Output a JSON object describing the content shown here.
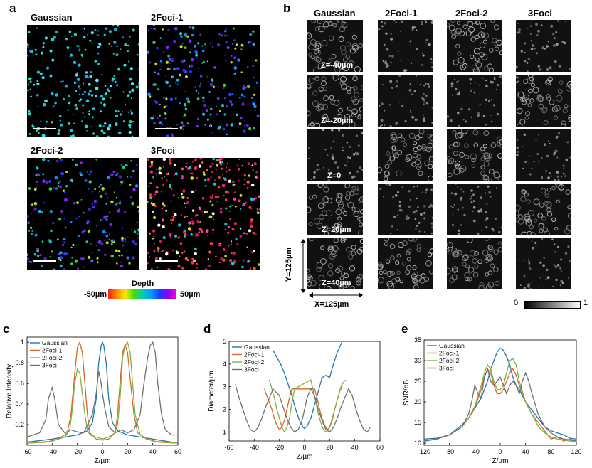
{
  "panel_a": {
    "label": "a",
    "titles": [
      "Gaussian",
      "2Foci-1",
      "2Foci-2",
      "3Foci"
    ],
    "depth": {
      "title": "Depth",
      "min": "-50µm",
      "max": "50µm"
    }
  },
  "panel_b": {
    "label": "b",
    "columns": [
      "Gaussian",
      "2Foci-1",
      "2Foci-2",
      "3Foci"
    ],
    "z_labels": [
      "Z=-40µm",
      "Z=-20µm",
      "Z=0",
      "Z=20µm",
      "Z=40µm"
    ],
    "y_size": "Y=125µm",
    "x_size": "X=125µm",
    "scale_min": "0",
    "scale_max": "1"
  },
  "colors": {
    "Gaussian": "#1f77b4",
    "2Foci-1": "#e0622a",
    "2Foci-2": "#7bb33e",
    "3Foci": "#707070"
  },
  "chart_data": [
    {
      "id": "c",
      "label": "c",
      "type": "line",
      "xlabel": "Z/µm",
      "ylabel": "Relative Intensity",
      "xlim": [
        -60,
        60
      ],
      "ylim": [
        0,
        1.05
      ],
      "xticks": [
        -60,
        -40,
        -20,
        0,
        20,
        40,
        60
      ],
      "yticks": [
        0.2,
        0.4,
        0.6,
        0.8,
        1
      ],
      "ytick_labels": [
        "0.2",
        "0.4",
        "0.6",
        "0.8",
        "1"
      ],
      "legend": "top-left",
      "series": [
        {
          "name": "Gaussian",
          "x": [
            -60,
            -40,
            -30,
            -20,
            -12,
            -8,
            -5,
            -3,
            -1,
            0,
            1,
            3,
            5,
            8,
            12,
            20,
            30,
            40,
            50,
            60
          ],
          "y": [
            0.03,
            0.06,
            0.08,
            0.1,
            0.14,
            0.22,
            0.45,
            0.8,
            0.97,
            1.0,
            0.97,
            0.8,
            0.45,
            0.22,
            0.14,
            0.1,
            0.08,
            0.06,
            0.04,
            0.02
          ]
        },
        {
          "name": "2Foci-1",
          "x": [
            -60,
            -45,
            -35,
            -28,
            -25,
            -22,
            -20,
            -18,
            -16,
            -14,
            -12,
            -10,
            -5,
            0,
            5,
            10,
            12,
            14,
            16,
            18,
            20,
            22,
            25,
            28,
            35,
            45,
            60
          ],
          "y": [
            0.02,
            0.03,
            0.06,
            0.12,
            0.3,
            0.7,
            0.95,
            1.0,
            0.9,
            0.6,
            0.3,
            0.12,
            0.06,
            0.05,
            0.06,
            0.12,
            0.3,
            0.6,
            0.9,
            0.98,
            0.9,
            0.65,
            0.3,
            0.12,
            0.06,
            0.03,
            0.02
          ]
        },
        {
          "name": "2Foci-2",
          "x": [
            -60,
            -40,
            -30,
            -26,
            -24,
            -22,
            -20,
            -18,
            -16,
            -14,
            -12,
            -10,
            -5,
            0,
            5,
            10,
            12,
            14,
            16,
            18,
            20,
            22,
            24,
            26,
            30,
            40,
            60
          ],
          "y": [
            0.02,
            0.04,
            0.08,
            0.15,
            0.35,
            0.6,
            0.74,
            0.7,
            0.5,
            0.3,
            0.15,
            0.1,
            0.08,
            0.06,
            0.08,
            0.12,
            0.2,
            0.45,
            0.85,
            0.97,
            1.0,
            0.9,
            0.6,
            0.3,
            0.1,
            0.04,
            0.02
          ]
        },
        {
          "name": "3Foci",
          "x": [
            -60,
            -50,
            -45,
            -43,
            -40,
            -38,
            -35,
            -30,
            -25,
            -20,
            -15,
            -8,
            -5,
            -3,
            -1,
            0,
            2,
            5,
            10,
            15,
            20,
            25,
            30,
            33,
            36,
            38,
            40,
            42,
            44,
            47,
            50,
            55,
            60
          ],
          "y": [
            0.08,
            0.12,
            0.25,
            0.45,
            0.56,
            0.45,
            0.2,
            0.12,
            0.15,
            0.13,
            0.12,
            0.3,
            0.5,
            0.72,
            0.6,
            0.5,
            0.35,
            0.18,
            0.12,
            0.15,
            0.12,
            0.15,
            0.3,
            0.6,
            0.85,
            0.97,
            1.0,
            0.9,
            0.6,
            0.3,
            0.15,
            0.1,
            0.1
          ]
        }
      ]
    },
    {
      "id": "d",
      "label": "d",
      "type": "line",
      "xlabel": "Z/µm",
      "ylabel": "Diameter/µm",
      "xlim": [
        -60,
        60
      ],
      "ylim": [
        0.6,
        5
      ],
      "xticks": [
        -60,
        -40,
        -20,
        0,
        20,
        40,
        60
      ],
      "yticks": [
        1,
        2,
        3,
        4,
        5
      ],
      "ytick_labels": [
        "1",
        "2",
        "3",
        "4",
        "5"
      ],
      "legend": "top-left",
      "series": [
        {
          "name": "Gaussian",
          "x": [
            -25,
            -22,
            -19,
            -16,
            -13,
            -10,
            -7,
            -4,
            -1,
            0,
            2,
            5,
            8,
            11,
            14,
            17,
            20,
            23,
            26,
            30
          ],
          "y": [
            4.6,
            4.3,
            4.0,
            3.6,
            3.1,
            2.6,
            2.0,
            1.5,
            1.2,
            1.15,
            1.25,
            1.6,
            2.2,
            2.8,
            3.4,
            3.5,
            3.4,
            4.0,
            4.5,
            5.0
          ]
        },
        {
          "name": "2Foci-1",
          "x": [
            -32,
            -30,
            -28,
            -26,
            -24,
            -22,
            -20,
            -18,
            -16,
            -14,
            -12,
            -10,
            8,
            10,
            12,
            14,
            16,
            18,
            20,
            22,
            24,
            26,
            28,
            30
          ],
          "y": [
            2.9,
            2.6,
            2.3,
            2.0,
            1.6,
            1.3,
            1.1,
            1.2,
            1.5,
            2.0,
            2.5,
            2.9,
            2.9,
            2.5,
            2.0,
            1.6,
            1.3,
            1.1,
            1.2,
            1.5,
            2.0,
            2.4,
            2.8,
            3.0
          ]
        },
        {
          "name": "2Foci-2",
          "x": [
            -28,
            -26,
            -24,
            -22,
            -20,
            -18,
            -16,
            -14,
            -12,
            -10,
            -8,
            5,
            7,
            9,
            11,
            13,
            15,
            17,
            19,
            21,
            23,
            25,
            27,
            29,
            31,
            33
          ],
          "y": [
            3.3,
            2.9,
            2.5,
            2.0,
            1.6,
            1.2,
            1.0,
            1.2,
            1.6,
            2.3,
            2.9,
            3.3,
            2.8,
            2.3,
            1.8,
            1.4,
            1.1,
            1.0,
            1.1,
            1.4,
            1.8,
            2.2,
            2.6,
            3.0,
            3.2,
            3.3
          ]
        },
        {
          "name": "3Foci",
          "x": [
            -55,
            -52,
            -49,
            -46,
            -43,
            -40,
            -37,
            -34,
            -31,
            -28,
            -25,
            -20,
            -17,
            -14,
            -11,
            -8,
            -5,
            -2,
            0,
            2,
            5,
            8,
            11,
            14,
            17,
            20,
            23,
            26,
            29,
            32,
            35,
            38,
            41,
            44,
            47,
            50,
            52
          ],
          "y": [
            3.1,
            2.5,
            2.0,
            1.5,
            1.1,
            1.0,
            1.2,
            1.6,
            2.1,
            2.5,
            2.9,
            2.6,
            2.1,
            1.6,
            1.2,
            1.0,
            1.1,
            1.5,
            2.0,
            2.5,
            2.9,
            2.6,
            2.0,
            1.5,
            1.1,
            1.0,
            1.2,
            1.6,
            2.1,
            2.5,
            2.9,
            2.6,
            2.0,
            1.5,
            1.1,
            1.0,
            1.2
          ]
        }
      ]
    },
    {
      "id": "e",
      "label": "e",
      "type": "line",
      "xlabel": "Z/µm",
      "ylabel": "SNR/dB",
      "xlim": [
        -120,
        120
      ],
      "ylim": [
        9.5,
        35
      ],
      "xticks": [
        -120,
        -80,
        -40,
        0,
        40,
        80,
        120
      ],
      "yticks": [
        10,
        15,
        20,
        25,
        30,
        35
      ],
      "ytick_labels": [
        "10",
        "15",
        "20",
        "25",
        "30",
        "35"
      ],
      "legend": "top-left",
      "series": [
        {
          "name": "Gaussian",
          "x": [
            -120,
            -100,
            -80,
            -60,
            -50,
            -40,
            -30,
            -20,
            -15,
            -10,
            -5,
            0,
            5,
            10,
            15,
            20,
            25,
            30,
            40,
            50,
            60,
            70,
            80,
            90,
            100,
            110,
            120
          ],
          "y": [
            11,
            11.2,
            12,
            14.5,
            16,
            18.5,
            21,
            25,
            28,
            30,
            32,
            33,
            32.5,
            31,
            29,
            26,
            24,
            23,
            20,
            18,
            16,
            14,
            13,
            12.5,
            12,
            11.2,
            11
          ]
        },
        {
          "name": "2Foci-1",
          "x": [
            -120,
            -100,
            -80,
            -60,
            -50,
            -40,
            -30,
            -25,
            -20,
            -15,
            -10,
            -5,
            0,
            5,
            10,
            15,
            20,
            25,
            30,
            40,
            50,
            60,
            70,
            80,
            90,
            100,
            110,
            120
          ],
          "y": [
            10.5,
            11,
            12,
            14,
            16,
            18.5,
            23,
            26,
            28,
            27,
            24,
            22,
            22,
            23,
            25,
            27,
            28,
            26.5,
            24,
            20,
            17,
            15,
            13,
            11,
            11.5,
            10.5,
            11,
            10.5
          ]
        },
        {
          "name": "2Foci-2",
          "x": [
            -120,
            -100,
            -80,
            -60,
            -50,
            -40,
            -30,
            -25,
            -20,
            -15,
            -10,
            -5,
            0,
            5,
            10,
            15,
            20,
            25,
            30,
            40,
            50,
            60,
            70,
            80,
            90,
            100,
            110,
            120
          ],
          "y": [
            10.5,
            11,
            12,
            14,
            16,
            19,
            24,
            27,
            29,
            28,
            25,
            23,
            23,
            24,
            27,
            30,
            30.5,
            29,
            25,
            20,
            17,
            14,
            12.5,
            11.5,
            11,
            10.8,
            10.5,
            10.5
          ]
        },
        {
          "name": "3Foci",
          "x": [
            -120,
            -100,
            -80,
            -60,
            -50,
            -45,
            -40,
            -35,
            -30,
            -25,
            -20,
            -15,
            -10,
            -5,
            0,
            5,
            10,
            15,
            20,
            25,
            30,
            35,
            40,
            45,
            50,
            60,
            70,
            80,
            90,
            100,
            110,
            120
          ],
          "y": [
            10.5,
            11,
            12,
            14,
            17,
            20,
            24,
            22,
            21,
            26,
            28,
            25,
            24,
            25,
            26,
            24,
            22,
            24,
            25,
            24,
            22,
            25,
            27,
            25,
            22,
            17,
            14,
            12.5,
            11.5,
            11,
            10.8,
            10.5
          ]
        }
      ]
    }
  ]
}
